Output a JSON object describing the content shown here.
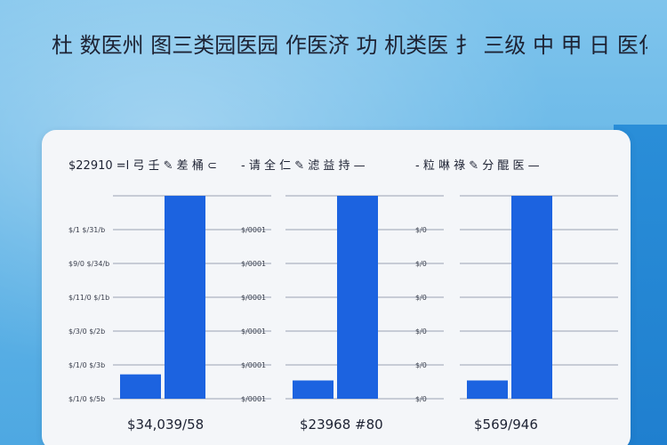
{
  "page": {
    "title": "杜 数医州 图三类园医园 作医济 功 机类医 ⺘    三级 中 甲 日 医化"
  },
  "colors": {
    "bar": "#1c63e0",
    "grid": "#9aa3b2",
    "card": "#f4f6f9",
    "background": "#6bb9e8"
  },
  "chart_data": [
    {
      "type": "bar",
      "title": "$22910 =l  弓 壬 ✎ 差 桶 ⊂",
      "categories": [
        "",
        ""
      ],
      "values": [
        12,
        100
      ],
      "ylim": [
        0,
        100
      ],
      "y_tick_labels": [
        "",
        "$/1 $/31/b",
        "$9/0 $/34/b",
        "$/11/0 $/1b",
        "$/3/0 $/2b",
        "$/1/0 $/3b",
        "$/1/0 $/5b"
      ],
      "grid": true,
      "total_label": "$34,039/58"
    },
    {
      "type": "bar",
      "title": "- 请 全 仁 ✎ 滤 益 持 —",
      "categories": [
        "",
        ""
      ],
      "values": [
        9,
        100
      ],
      "ylim": [
        0,
        100
      ],
      "y_tick_labels": [
        "",
        "$/0001",
        "$/0001",
        "$/0001",
        "$/0001",
        "$/0001",
        "$/0001"
      ],
      "grid": true,
      "total_label": "$23968 #80"
    },
    {
      "type": "bar",
      "title": "- 粒 啉 祿 ✎ 分 醌 医 —",
      "categories": [
        "",
        ""
      ],
      "values": [
        9,
        100
      ],
      "ylim": [
        0,
        100
      ],
      "y_tick_labels": [
        "",
        "$/0",
        "$/0",
        "$/0",
        "$/0",
        "$/0",
        "$/0"
      ],
      "grid": true,
      "total_label": "$569/946"
    }
  ]
}
